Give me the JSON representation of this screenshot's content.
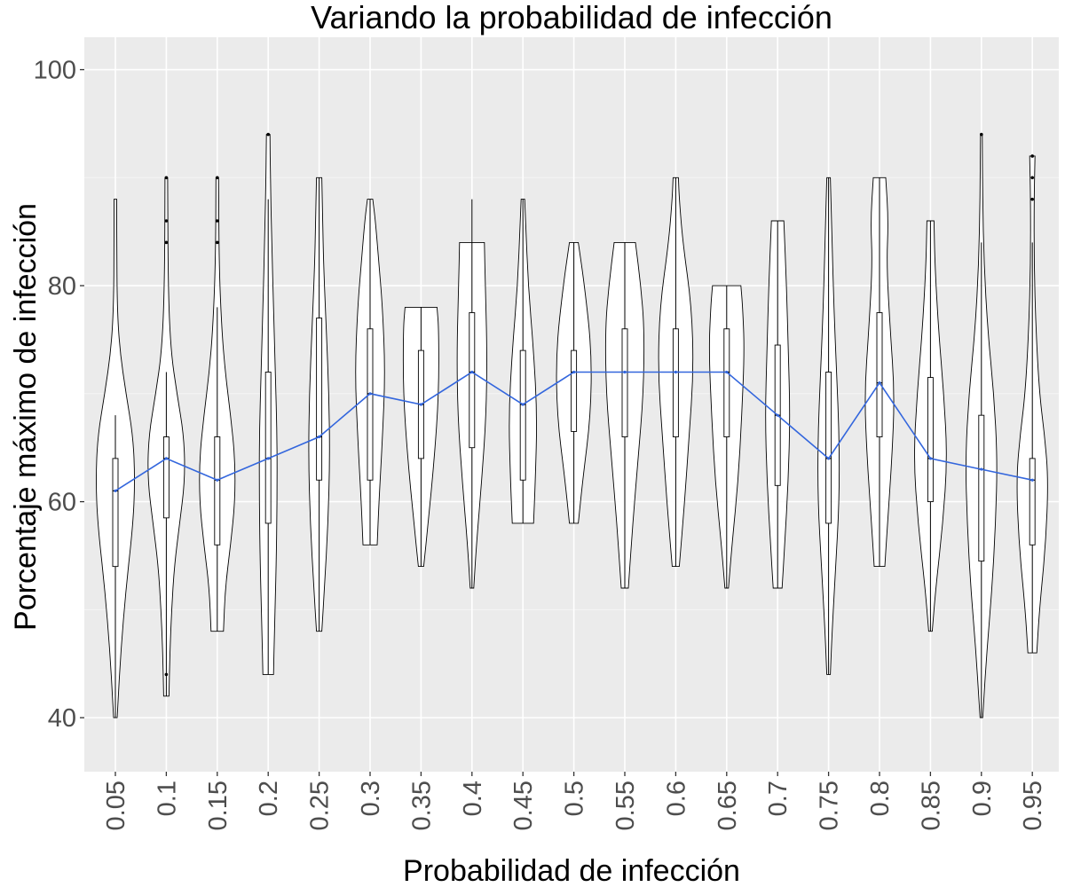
{
  "chart_data": {
    "type": "violin",
    "title": "Variando la probabilidad de infección",
    "xlabel": "Probabilidad de infección",
    "ylabel": "Porcentaje máximo de infección",
    "categories": [
      "0.05",
      "0.1",
      "0.15",
      "0.2",
      "0.25",
      "0.3",
      "0.35",
      "0.4",
      "0.45",
      "0.5",
      "0.55",
      "0.6",
      "0.65",
      "0.7",
      "0.75",
      "0.8",
      "0.85",
      "0.9",
      "0.95"
    ],
    "yticks": [
      40,
      60,
      80,
      100
    ],
    "ylim": [
      35,
      103
    ],
    "grid": true,
    "line_color": "#3366dd",
    "panel_background": "#ebebeb",
    "series": [
      {
        "values": [
          61,
          64,
          62,
          64,
          66,
          70,
          69,
          72,
          69,
          72,
          72,
          72,
          72,
          68,
          64,
          71,
          64,
          63,
          62
        ]
      }
    ],
    "distributions": [
      {
        "min": 40,
        "q1": 54,
        "median": 61,
        "q3": 64,
        "max": 88,
        "whisker_high": 68,
        "outliers": [],
        "half_width": [
          [
            40,
            2
          ],
          [
            46,
            6
          ],
          [
            52,
            12
          ],
          [
            58,
            20
          ],
          [
            62,
            22
          ],
          [
            66,
            20
          ],
          [
            70,
            12
          ],
          [
            74,
            5
          ],
          [
            78,
            2
          ],
          [
            84,
            1.5
          ],
          [
            88,
            1.5
          ]
        ]
      },
      {
        "min": 42,
        "q1": 58.5,
        "median": 64,
        "q3": 66,
        "max": 90,
        "whisker_high": 72,
        "outliers": [
          44,
          84,
          86,
          90
        ],
        "half_width": [
          [
            42,
            3
          ],
          [
            46,
            4
          ],
          [
            50,
            6
          ],
          [
            54,
            9
          ],
          [
            58,
            15
          ],
          [
            62,
            21
          ],
          [
            66,
            20
          ],
          [
            70,
            12
          ],
          [
            74,
            5
          ],
          [
            80,
            2
          ],
          [
            90,
            1.5
          ]
        ]
      },
      {
        "min": 48,
        "q1": 56,
        "median": 62,
        "q3": 66,
        "max": 90,
        "whisker_high": 78,
        "outliers": [
          84,
          86,
          90
        ],
        "half_width": [
          [
            48,
            7
          ],
          [
            52,
            9
          ],
          [
            56,
            15
          ],
          [
            60,
            20
          ],
          [
            64,
            20
          ],
          [
            68,
            15
          ],
          [
            72,
            9
          ],
          [
            76,
            5
          ],
          [
            82,
            2
          ],
          [
            90,
            1.5
          ]
        ]
      },
      {
        "min": 44,
        "q1": 58,
        "median": 64,
        "q3": 72,
        "max": 94,
        "whisker_high": 88,
        "outliers": [
          94
        ],
        "half_width": [
          [
            44,
            6
          ],
          [
            48,
            7
          ],
          [
            54,
            9
          ],
          [
            60,
            10
          ],
          [
            66,
            10
          ],
          [
            72,
            8
          ],
          [
            78,
            6
          ],
          [
            84,
            4
          ],
          [
            90,
            2.5
          ],
          [
            94,
            2
          ]
        ]
      },
      {
        "min": 48,
        "q1": 62,
        "median": 66,
        "q3": 77,
        "max": 90,
        "whisker_high": 90,
        "outliers": [],
        "half_width": [
          [
            48,
            3
          ],
          [
            52,
            6
          ],
          [
            58,
            10
          ],
          [
            64,
            12
          ],
          [
            70,
            11
          ],
          [
            76,
            8
          ],
          [
            82,
            5
          ],
          [
            86,
            4
          ],
          [
            90,
            3
          ]
        ]
      },
      {
        "min": 56,
        "q1": 62,
        "median": 70,
        "q3": 76,
        "max": 88,
        "whisker_high": 88,
        "outliers": [],
        "half_width": [
          [
            56,
            8
          ],
          [
            60,
            10
          ],
          [
            66,
            14
          ],
          [
            72,
            17
          ],
          [
            78,
            14
          ],
          [
            82,
            10
          ],
          [
            86,
            6
          ],
          [
            88,
            3
          ]
        ]
      },
      {
        "min": 54,
        "q1": 64,
        "median": 69,
        "q3": 74,
        "max": 78,
        "whisker_high": 78,
        "outliers": [],
        "half_width": [
          [
            54,
            3
          ],
          [
            58,
            8
          ],
          [
            64,
            15
          ],
          [
            70,
            20
          ],
          [
            76,
            20
          ],
          [
            78,
            18
          ]
        ]
      },
      {
        "min": 52,
        "q1": 65,
        "median": 72,
        "q3": 77.5,
        "max": 88,
        "whisker_high": 88,
        "outliers": [],
        "half_width": [
          [
            52,
            2
          ],
          [
            56,
            5
          ],
          [
            62,
            11
          ],
          [
            68,
            16
          ],
          [
            74,
            17
          ],
          [
            80,
            15
          ],
          [
            84,
            14
          ]
        ]
      },
      {
        "min": 58,
        "q1": 62,
        "median": 69,
        "q3": 74,
        "max": 88,
        "whisker_high": 88,
        "outliers": [],
        "half_width": [
          [
            58,
            12
          ],
          [
            62,
            14
          ],
          [
            68,
            16
          ],
          [
            74,
            12
          ],
          [
            80,
            6
          ],
          [
            86,
            3
          ],
          [
            88,
            2
          ]
        ]
      },
      {
        "min": 58,
        "q1": 66.5,
        "median": 72,
        "q3": 74,
        "max": 84,
        "whisker_high": 84,
        "outliers": [],
        "half_width": [
          [
            58,
            5
          ],
          [
            62,
            10
          ],
          [
            68,
            19
          ],
          [
            74,
            20
          ],
          [
            80,
            12
          ],
          [
            84,
            5
          ]
        ]
      },
      {
        "min": 52,
        "q1": 66,
        "median": 72,
        "q3": 76,
        "max": 84,
        "whisker_high": 84,
        "outliers": [],
        "half_width": [
          [
            52,
            4
          ],
          [
            58,
            9
          ],
          [
            64,
            15
          ],
          [
            70,
            21
          ],
          [
            76,
            22
          ],
          [
            80,
            18
          ],
          [
            84,
            12
          ]
        ]
      },
      {
        "min": 54,
        "q1": 66,
        "median": 72,
        "q3": 76,
        "max": 90,
        "whisker_high": 90,
        "outliers": [],
        "half_width": [
          [
            54,
            4
          ],
          [
            60,
            10
          ],
          [
            66,
            15
          ],
          [
            72,
            20
          ],
          [
            78,
            18
          ],
          [
            84,
            8
          ],
          [
            88,
            4
          ],
          [
            90,
            3
          ]
        ]
      },
      {
        "min": 52,
        "q1": 66,
        "median": 72,
        "q3": 76,
        "max": 80,
        "whisker_high": 80,
        "outliers": [],
        "half_width": [
          [
            52,
            2
          ],
          [
            56,
            6
          ],
          [
            62,
            13
          ],
          [
            68,
            17
          ],
          [
            74,
            20
          ],
          [
            78,
            18
          ],
          [
            80,
            16
          ]
        ]
      },
      {
        "min": 52,
        "q1": 61.5,
        "median": 68,
        "q3": 74.5,
        "max": 86,
        "whisker_high": 86,
        "outliers": [],
        "half_width": [
          [
            52,
            5
          ],
          [
            56,
            8
          ],
          [
            62,
            12
          ],
          [
            68,
            14
          ],
          [
            74,
            12
          ],
          [
            80,
            10
          ],
          [
            86,
            7
          ]
        ]
      },
      {
        "min": 44,
        "q1": 58,
        "median": 64,
        "q3": 72,
        "max": 90,
        "whisker_high": 90,
        "outliers": [],
        "half_width": [
          [
            44,
            2
          ],
          [
            48,
            4
          ],
          [
            54,
            8
          ],
          [
            60,
            12
          ],
          [
            66,
            12
          ],
          [
            72,
            9
          ],
          [
            78,
            6
          ],
          [
            84,
            4
          ],
          [
            90,
            2
          ]
        ]
      },
      {
        "min": 54,
        "q1": 66,
        "median": 71,
        "q3": 77.5,
        "max": 90,
        "whisker_high": 90,
        "outliers": [],
        "half_width": [
          [
            54,
            6
          ],
          [
            58,
            9
          ],
          [
            64,
            14
          ],
          [
            70,
            17
          ],
          [
            76,
            12
          ],
          [
            82,
            8
          ],
          [
            86,
            10
          ],
          [
            90,
            7
          ]
        ]
      },
      {
        "min": 48,
        "q1": 60,
        "median": 64,
        "q3": 71.5,
        "max": 86,
        "whisker_high": 86,
        "outliers": [],
        "half_width": [
          [
            48,
            2
          ],
          [
            52,
            6
          ],
          [
            58,
            14
          ],
          [
            64,
            19
          ],
          [
            70,
            15
          ],
          [
            76,
            9
          ],
          [
            82,
            5
          ],
          [
            86,
            4
          ]
        ]
      },
      {
        "min": 40,
        "q1": 54.5,
        "median": 63,
        "q3": 68,
        "max": 94,
        "whisker_high": 84,
        "outliers": [
          94
        ],
        "half_width": [
          [
            40,
            1.5
          ],
          [
            46,
            6
          ],
          [
            52,
            12
          ],
          [
            58,
            16
          ],
          [
            64,
            18
          ],
          [
            70,
            14
          ],
          [
            76,
            7
          ],
          [
            82,
            3
          ],
          [
            88,
            1.5
          ],
          [
            94,
            1
          ]
        ]
      },
      {
        "min": 46,
        "q1": 56,
        "median": 62,
        "q3": 64,
        "max": 92,
        "whisker_high": 84,
        "outliers": [
          88,
          90,
          92
        ],
        "half_width": [
          [
            46,
            5
          ],
          [
            50,
            8
          ],
          [
            56,
            15
          ],
          [
            62,
            18
          ],
          [
            66,
            14
          ],
          [
            70,
            8
          ],
          [
            76,
            4
          ],
          [
            82,
            2
          ],
          [
            88,
            2
          ],
          [
            92,
            3
          ]
        ]
      }
    ]
  }
}
